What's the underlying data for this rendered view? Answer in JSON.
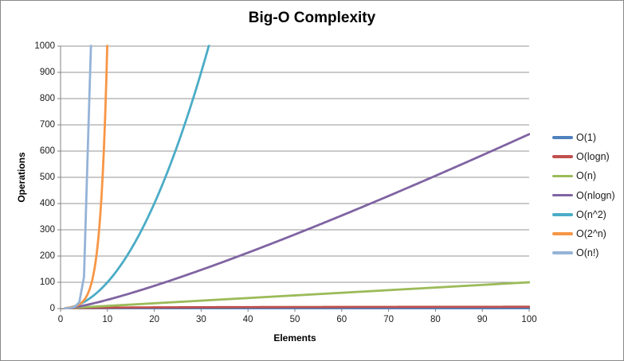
{
  "chart_data": {
    "type": "line",
    "title": "Big-O Complexity",
    "xlabel": "Elements",
    "ylabel": "Operations",
    "xlim": [
      0,
      100
    ],
    "ylim": [
      0,
      1000
    ],
    "xticks": [
      0,
      10,
      20,
      30,
      40,
      50,
      60,
      70,
      80,
      90,
      100
    ],
    "yticks": [
      0,
      100,
      200,
      300,
      400,
      500,
      600,
      700,
      800,
      900,
      1000
    ],
    "grid": true,
    "legend_position": "right",
    "colors": {
      "gridline": "#969696",
      "axis": "#808080",
      "tick_text": "#1a1a1a",
      "title_text": "#000000"
    },
    "series": [
      {
        "name": "O(1)",
        "color": "#4F81BD",
        "formula": "1"
      },
      {
        "name": "O(logn)",
        "color": "#C0504D",
        "formula": "log2(n)"
      },
      {
        "name": "O(n)",
        "color": "#9BBB59",
        "formula": "n"
      },
      {
        "name": "O(nlogn)",
        "color": "#8064A2",
        "formula": "n*log2(n)"
      },
      {
        "name": "O(n^2)",
        "color": "#4BACC6",
        "formula": "n^2"
      },
      {
        "name": "O(2^n)",
        "color": "#F79646",
        "formula": "2^n"
      },
      {
        "name": "O(n!)",
        "color": "#95B3D7",
        "formula": "n!"
      }
    ]
  }
}
